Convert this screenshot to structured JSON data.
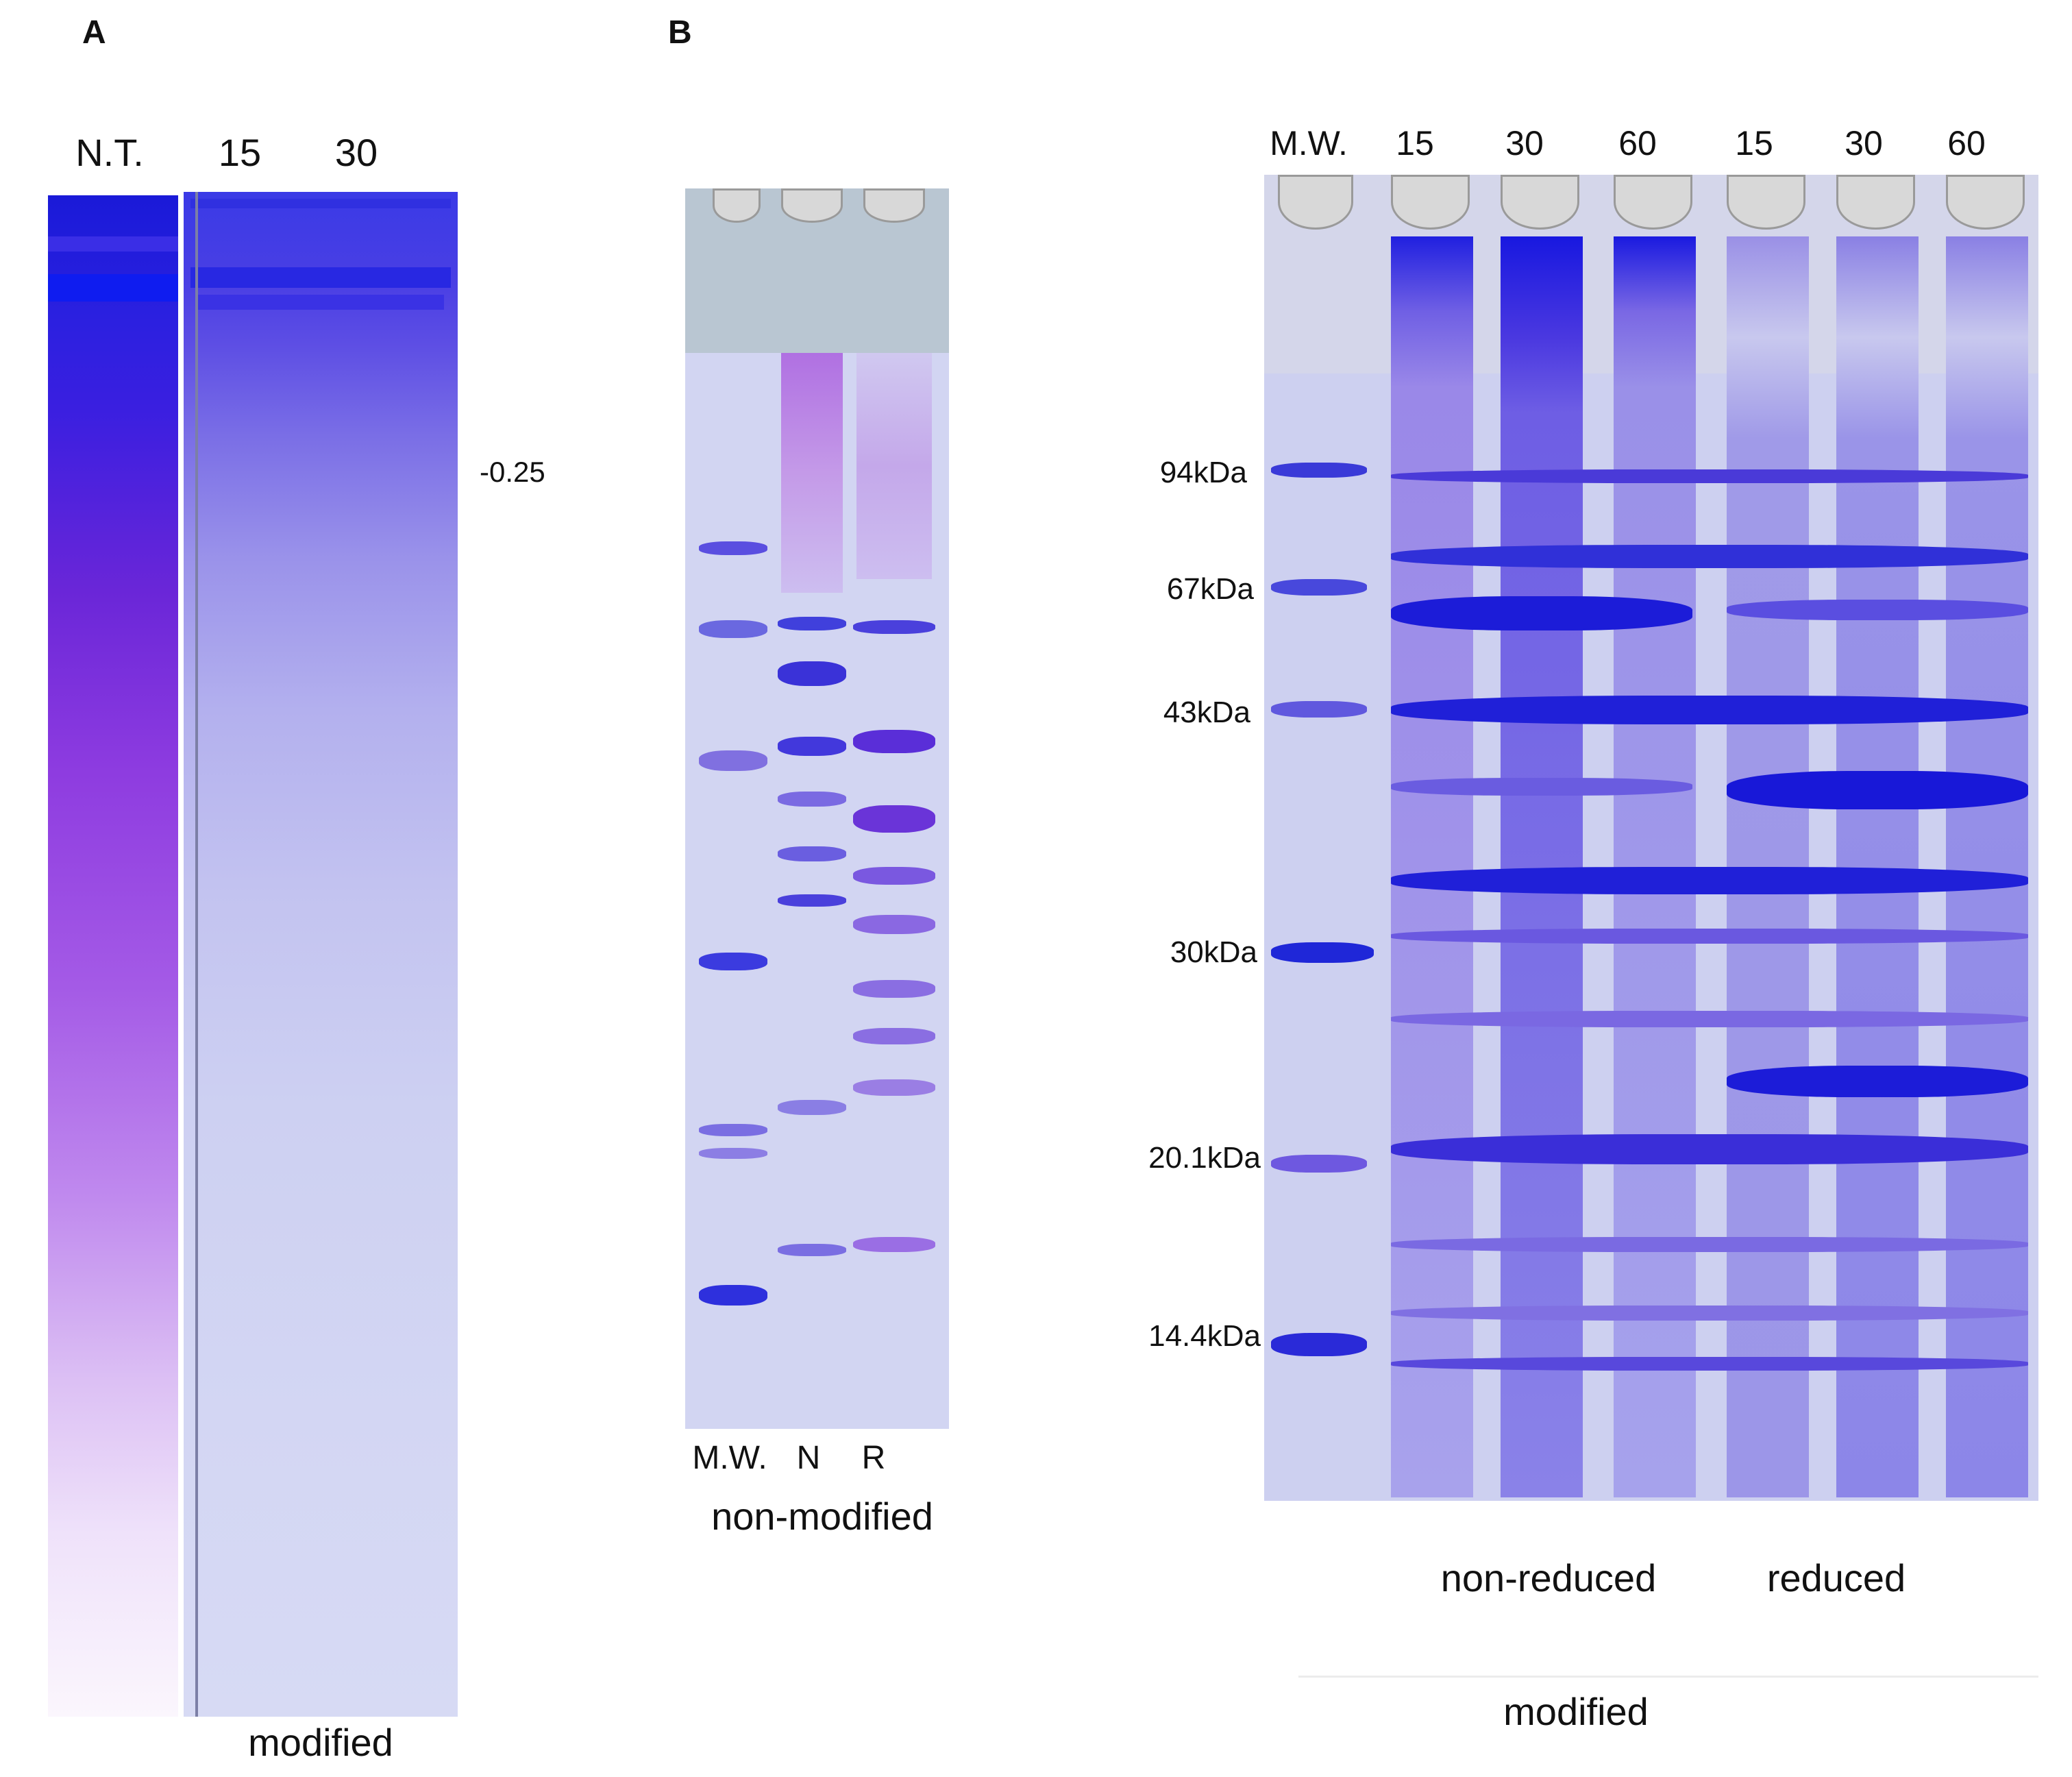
{
  "panel_a": {
    "letter": "A",
    "lanes": [
      "N.T.",
      "15",
      "30"
    ],
    "marker": "-0.25",
    "caption": "modified"
  },
  "panel_b_left": {
    "letter": "B",
    "lanes": [
      "M.W.",
      "N",
      "R"
    ],
    "caption": "non-modified"
  },
  "panel_b_right": {
    "lanes": [
      "M.W.",
      "15",
      "30",
      "60",
      "15",
      "30",
      "60"
    ],
    "mw_markers": [
      "94kDa",
      "67kDa",
      "43kDa",
      "30kDa",
      "20.1kDa",
      "14.4kDa"
    ],
    "group_labels": [
      "non-reduced",
      "reduced"
    ],
    "caption": "modified"
  },
  "colors": {
    "gel_background": "#c9cdee",
    "band_dark": "#2a2ad6",
    "band_purple": "#8a3ad8",
    "nt_lane": "#7a2fe0"
  }
}
